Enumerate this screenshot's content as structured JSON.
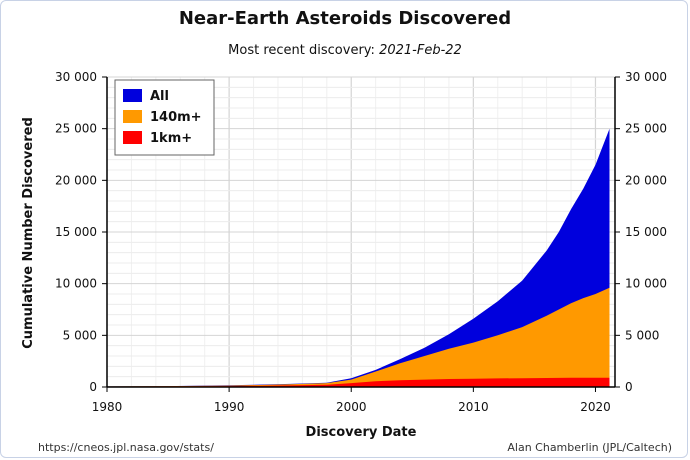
{
  "header": {
    "title": "Near-Earth Asteroids Discovered",
    "subtitle_prefix": "Most recent discovery:",
    "subtitle_date": "2021-Feb-22"
  },
  "footer": {
    "source": "https://cneos.jpl.nasa.gov/stats/",
    "credit": "Alan Chamberlin (JPL/Caltech)"
  },
  "chart_data": {
    "type": "area",
    "title": "Near-Earth Asteroids Discovered",
    "subtitle": "Most recent discovery: 2021-Feb-22",
    "xlabel": "Discovery Date",
    "ylabel": "Cumulative Number Discovered",
    "xlim": [
      1980,
      2021.6
    ],
    "ylim": [
      0,
      30000
    ],
    "x_ticks": [
      1980,
      1990,
      2000,
      2010,
      2020
    ],
    "x_tick_labels": [
      "1980",
      "1990",
      "2000",
      "2010",
      "2020"
    ],
    "y_ticks": [
      0,
      5000,
      10000,
      15000,
      20000,
      25000,
      30000
    ],
    "y_tick_labels": [
      "0",
      "5 000",
      "10 000",
      "15 000",
      "20 000",
      "25 000",
      "30 000"
    ],
    "grid": true,
    "legend_position": "top-left",
    "stacked": false,
    "x": [
      1980,
      1985,
      1990,
      1995,
      1998,
      2000,
      2002,
      2004,
      2006,
      2008,
      2010,
      2012,
      2014,
      2016,
      2017,
      2018,
      2019,
      2020,
      2021.15
    ],
    "series": [
      {
        "name": "All",
        "color": "#0000dd",
        "values": [
          60,
          90,
          160,
          300,
          420,
          850,
          1650,
          2700,
          3800,
          5100,
          6600,
          8300,
          10300,
          13200,
          15000,
          17200,
          19200,
          21500,
          25000
        ]
      },
      {
        "name": "140m+",
        "color": "#ff9900",
        "values": [
          55,
          85,
          140,
          260,
          380,
          720,
          1500,
          2300,
          3000,
          3700,
          4300,
          5000,
          5800,
          6900,
          7500,
          8100,
          8600,
          9000,
          9600
        ]
      },
      {
        "name": "1km+",
        "color": "#ff0000",
        "values": [
          40,
          60,
          90,
          150,
          220,
          380,
          560,
          650,
          720,
          770,
          800,
          830,
          850,
          870,
          880,
          890,
          890,
          895,
          900
        ]
      }
    ]
  }
}
